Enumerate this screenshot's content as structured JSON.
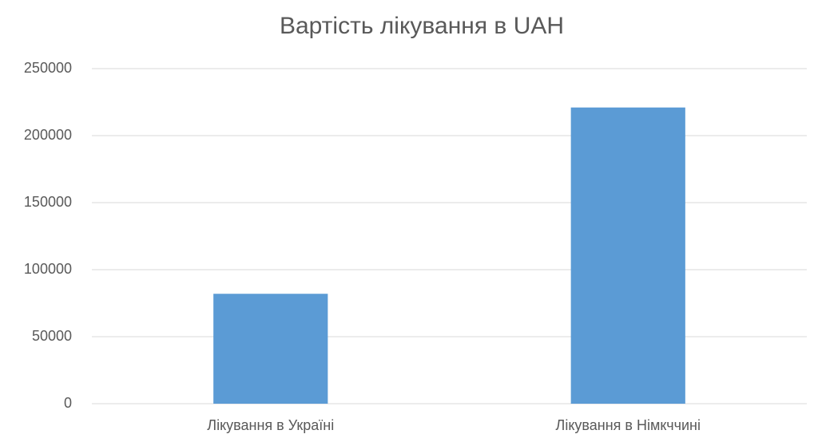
{
  "chart_data": {
    "type": "bar",
    "title": "Вартість лікування в UAH",
    "categories": [
      "Лікування в Україні",
      "Лікування в Німкччині"
    ],
    "values": [
      82000,
      221000
    ],
    "color": "#5b9bd5",
    "ylim": [
      0,
      250000
    ],
    "yticks": [
      0,
      50000,
      100000,
      150000,
      200000,
      250000
    ],
    "grid": true
  }
}
